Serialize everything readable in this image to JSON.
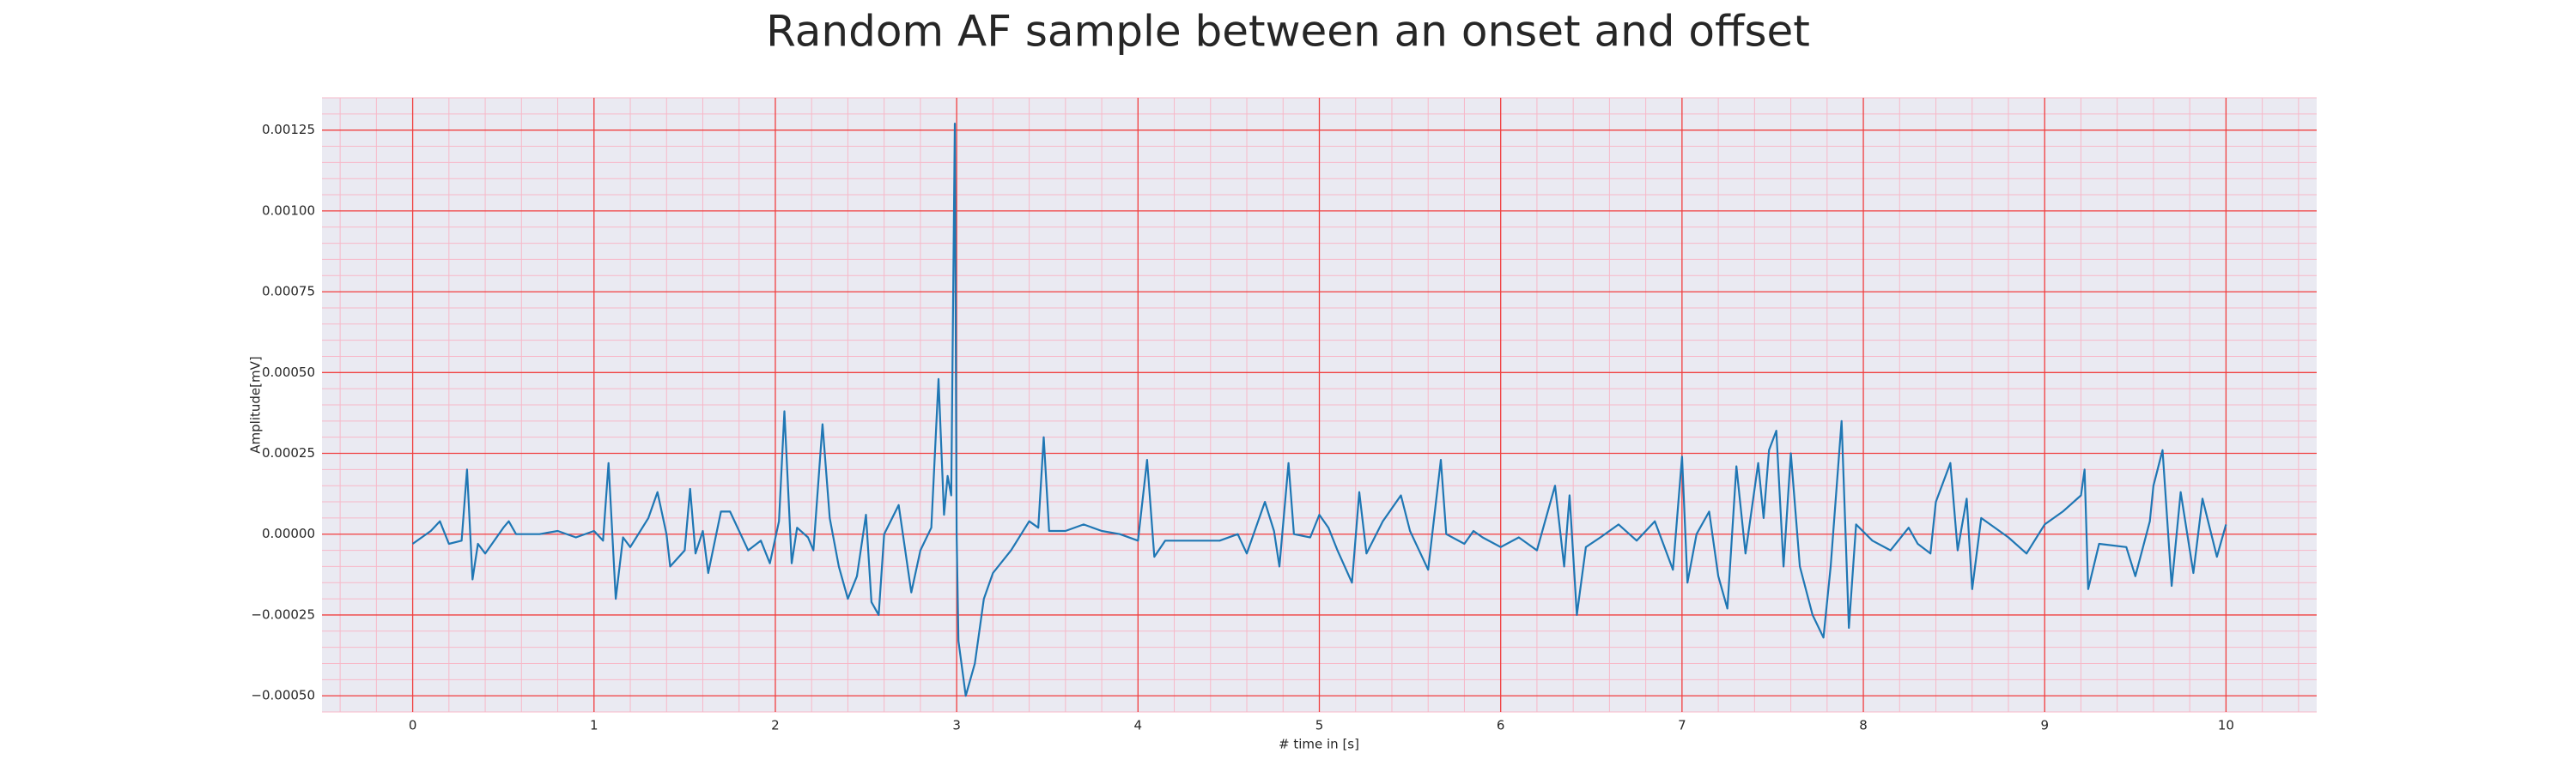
{
  "chart_data": {
    "type": "line",
    "title": "Random AF sample between an onset and offset",
    "xlabel": "# time in [s]",
    "ylabel": "Amplitude[mV]",
    "xlim": [
      -0.5,
      10.5
    ],
    "ylim": [
      -0.00055,
      0.00135
    ],
    "xticks": [
      0,
      1,
      2,
      3,
      4,
      5,
      6,
      7,
      8,
      9,
      10
    ],
    "yticks": [
      {
        "value": -0.0005,
        "label": "−0.00050"
      },
      {
        "value": -0.00025,
        "label": "−0.00025"
      },
      {
        "value": 0,
        "label": "0.00000"
      },
      {
        "value": 0.00025,
        "label": "0.00025"
      },
      {
        "value": 0.0005,
        "label": "0.00050"
      },
      {
        "value": 0.00075,
        "label": "0.00075"
      },
      {
        "value": 0.001,
        "label": "0.00100"
      },
      {
        "value": 0.00125,
        "label": "0.00125"
      }
    ],
    "grid": true,
    "background": "#eaeaf2",
    "grid_color": "#f04040",
    "minor_grid_color": "#f7b8c8",
    "color": "#1f77b4",
    "x": [
      0,
      0.1,
      0.15,
      0.2,
      0.27,
      0.3,
      0.33,
      0.36,
      0.4,
      0.5,
      0.53,
      0.57,
      0.7,
      0.8,
      0.9,
      1.0,
      1.05,
      1.08,
      1.12,
      1.16,
      1.2,
      1.3,
      1.35,
      1.4,
      1.42,
      1.5,
      1.53,
      1.56,
      1.6,
      1.63,
      1.7,
      1.75,
      1.85,
      1.92,
      1.97,
      2.02,
      2.05,
      2.09,
      2.12,
      2.18,
      2.21,
      2.26,
      2.3,
      2.35,
      2.4,
      2.45,
      2.5,
      2.53,
      2.57,
      2.6,
      2.68,
      2.75,
      2.8,
      2.86,
      2.9,
      2.93,
      2.95,
      2.97,
      2.99,
      3.0,
      3.01,
      3.05,
      3.1,
      3.15,
      3.2,
      3.3,
      3.4,
      3.45,
      3.48,
      3.51,
      3.6,
      3.7,
      3.8,
      3.9,
      4.0,
      4.05,
      4.09,
      4.15,
      4.3,
      4.45,
      4.55,
      4.6,
      4.7,
      4.75,
      4.78,
      4.83,
      4.86,
      4.95,
      5.0,
      5.05,
      5.1,
      5.18,
      5.22,
      5.26,
      5.35,
      5.45,
      5.5,
      5.6,
      5.67,
      5.7,
      5.8,
      5.85,
      5.9,
      6.0,
      6.1,
      6.2,
      6.3,
      6.35,
      6.38,
      6.42,
      6.47,
      6.55,
      6.65,
      6.75,
      6.85,
      6.95,
      7.0,
      7.03,
      7.08,
      7.15,
      7.2,
      7.25,
      7.3,
      7.35,
      7.42,
      7.45,
      7.48,
      7.52,
      7.56,
      7.6,
      7.65,
      7.72,
      7.78,
      7.82,
      7.88,
      7.92,
      7.96,
      8.05,
      8.15,
      8.25,
      8.3,
      8.37,
      8.4,
      8.48,
      8.52,
      8.57,
      8.6,
      8.65,
      8.8,
      8.9,
      9.0,
      9.1,
      9.2,
      9.22,
      9.24,
      9.3,
      9.45,
      9.5,
      9.58,
      9.6,
      9.65,
      9.7,
      9.75,
      9.82,
      9.87,
      9.95,
      10.0
    ],
    "values": [
      -3e-05,
      1e-05,
      4e-05,
      -3e-05,
      -2e-05,
      0.0002,
      -0.00014,
      -3e-05,
      -6e-05,
      2e-05,
      4e-05,
      0,
      0,
      1e-05,
      -1e-05,
      1e-05,
      -2e-05,
      0.00022,
      -0.0002,
      -1e-05,
      -4e-05,
      5e-05,
      0.00013,
      0,
      -0.0001,
      -5e-05,
      0.00014,
      -6e-05,
      1e-05,
      -0.00012,
      7e-05,
      7e-05,
      -5e-05,
      -2e-05,
      -9e-05,
      4e-05,
      0.00038,
      -9e-05,
      2e-05,
      -1e-05,
      -5e-05,
      0.00034,
      5e-05,
      -0.0001,
      -0.0002,
      -0.00013,
      6e-05,
      -0.00021,
      -0.00025,
      0,
      9e-05,
      -0.00018,
      -5e-05,
      2e-05,
      0.00048,
      6e-05,
      0.00018,
      0.00012,
      0.00127,
      0,
      -0.00033,
      -0.0005,
      -0.0004,
      -0.0002,
      -0.00012,
      -5e-05,
      4e-05,
      2e-05,
      0.0003,
      1e-05,
      1e-05,
      3e-05,
      1e-05,
      0,
      -2e-05,
      0.00023,
      -7e-05,
      -2e-05,
      -2e-05,
      -2e-05,
      0,
      -6e-05,
      0.0001,
      1e-05,
      -0.0001,
      0.00022,
      0,
      -1e-05,
      6e-05,
      2e-05,
      -5e-05,
      -0.00015,
      0.00013,
      -6e-05,
      4e-05,
      0.00012,
      1e-05,
      -0.00011,
      0.00023,
      0,
      -3e-05,
      1e-05,
      -1e-05,
      -4e-05,
      -1e-05,
      -5e-05,
      0.00015,
      -0.0001,
      0.00012,
      -0.00025,
      -4e-05,
      -1e-05,
      3e-05,
      -2e-05,
      4e-05,
      -0.00011,
      0.00024,
      -0.00015,
      0,
      7e-05,
      -0.00013,
      -0.00023,
      0.00021,
      -6e-05,
      0.00022,
      5e-05,
      0.00026,
      0.00032,
      -0.0001,
      0.00025,
      -0.0001,
      -0.00025,
      -0.00032,
      -0.0001,
      0.00035,
      -0.00029,
      3e-05,
      -2e-05,
      -5e-05,
      2e-05,
      -3e-05,
      -6e-05,
      0.0001,
      0.00022,
      -5e-05,
      0.00011,
      -0.00017,
      5e-05,
      -1e-05,
      -6e-05,
      3e-05,
      7e-05,
      0.00012,
      0.0002,
      -0.00017,
      -3e-05,
      -4e-05,
      -0.00013,
      4e-05,
      0.00015,
      0.00026,
      -0.00016,
      0.00013,
      -0.00012,
      0.00011,
      -7e-05,
      3e-05
    ]
  }
}
